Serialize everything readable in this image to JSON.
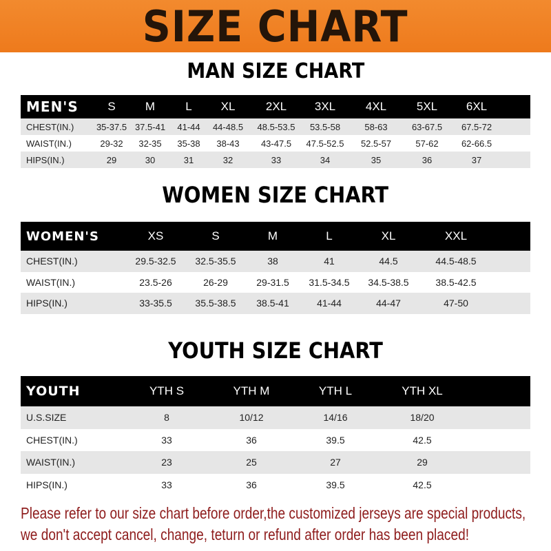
{
  "banner": {
    "title": "SIZE CHART",
    "color": "#ef7f24"
  },
  "men": {
    "title": "MAN SIZE CHART",
    "header": "MEN'S",
    "sizes": [
      "S",
      "M",
      "L",
      "XL",
      "2XL",
      "3XL",
      "4XL",
      "5XL",
      "6XL"
    ],
    "rows": [
      {
        "label": "CHEST(IN.)",
        "values": [
          "35-37.5",
          "37.5-41",
          "41-44",
          "44-48.5",
          "48.5-53.5",
          "53.5-58",
          "58-63",
          "63-67.5",
          "67.5-72"
        ]
      },
      {
        "label": "WAIST(IN.)",
        "values": [
          "29-32",
          "32-35",
          "35-38",
          "38-43",
          "43-47.5",
          "47.5-52.5",
          "52.5-57",
          "57-62",
          "62-66.5"
        ]
      },
      {
        "label": "HIPS(IN.)",
        "values": [
          "29",
          "30",
          "31",
          "32",
          "33",
          "34",
          "35",
          "36",
          "37"
        ]
      }
    ]
  },
  "women": {
    "title": "WOMEN SIZE CHART",
    "header": "WOMEN'S",
    "sizes": [
      "XS",
      "S",
      "M",
      "L",
      "XL",
      "XXL"
    ],
    "rows": [
      {
        "label": "CHEST(IN.)",
        "values": [
          "29.5-32.5",
          "32.5-35.5",
          "38",
          "41",
          "44.5",
          "44.5-48.5"
        ]
      },
      {
        "label": "WAIST(IN.)",
        "values": [
          "23.5-26",
          "26-29",
          "29-31.5",
          "31.5-34.5",
          "34.5-38.5",
          "38.5-42.5"
        ]
      },
      {
        "label": "HIPS(IN.)",
        "values": [
          "33-35.5",
          "35.5-38.5",
          "38.5-41",
          "41-44",
          "44-47",
          "47-50"
        ]
      }
    ]
  },
  "youth": {
    "title": "YOUTH SIZE CHART",
    "header": "YOUTH",
    "sizes": [
      "YTH S",
      "YTH M",
      "YTH L",
      "YTH XL"
    ],
    "rows": [
      {
        "label": "U.S.SIZE",
        "values": [
          "8",
          "10/12",
          "14/16",
          "18/20"
        ]
      },
      {
        "label": "CHEST(IN.)",
        "values": [
          "33",
          "36",
          "39.5",
          "42.5"
        ]
      },
      {
        "label": "WAIST(IN.)",
        "values": [
          "23",
          "25",
          "27",
          "29"
        ]
      },
      {
        "label": "HIPS(IN.)",
        "values": [
          "33",
          "36",
          "39.5",
          "42.5"
        ]
      }
    ]
  },
  "notice": {
    "line1": "Please refer to our size chart before order,the customized jerseys are special products,",
    "line2": "we don't accept cancel, change, teturn or refund after order has been placed!",
    "color": "#8e1c1c"
  }
}
